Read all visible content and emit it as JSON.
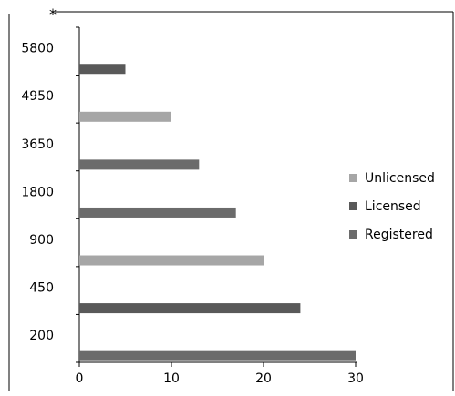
{
  "chart_data": {
    "type": "bar",
    "orientation": "horizontal",
    "corner_mark": "*",
    "categories": [
      "200",
      "450",
      "900",
      "1800",
      "3650",
      "4950",
      "5800"
    ],
    "series": [
      {
        "name": "Unlicensed",
        "color": "#a6a6a6"
      },
      {
        "name": "Licensed",
        "color": "#595959"
      },
      {
        "name": "Registered",
        "color": "#6b6b6b"
      }
    ],
    "bars": [
      {
        "category": "200",
        "series": "Registered",
        "value": 30
      },
      {
        "category": "450",
        "series": "Licensed",
        "value": 24
      },
      {
        "category": "900",
        "series": "Unlicensed",
        "value": 20
      },
      {
        "category": "1800",
        "series": "Registered",
        "value": 17
      },
      {
        "category": "3650",
        "series": "Registered",
        "value": 13
      },
      {
        "category": "4950",
        "series": "Unlicensed",
        "value": 10
      },
      {
        "category": "5800",
        "series": "Licensed",
        "value": 5
      }
    ],
    "x_ticks": [
      0,
      10,
      20,
      30
    ],
    "xlim": [
      0,
      30
    ],
    "xlabel": "",
    "ylabel": "",
    "grid": false,
    "legend_position": "right"
  }
}
